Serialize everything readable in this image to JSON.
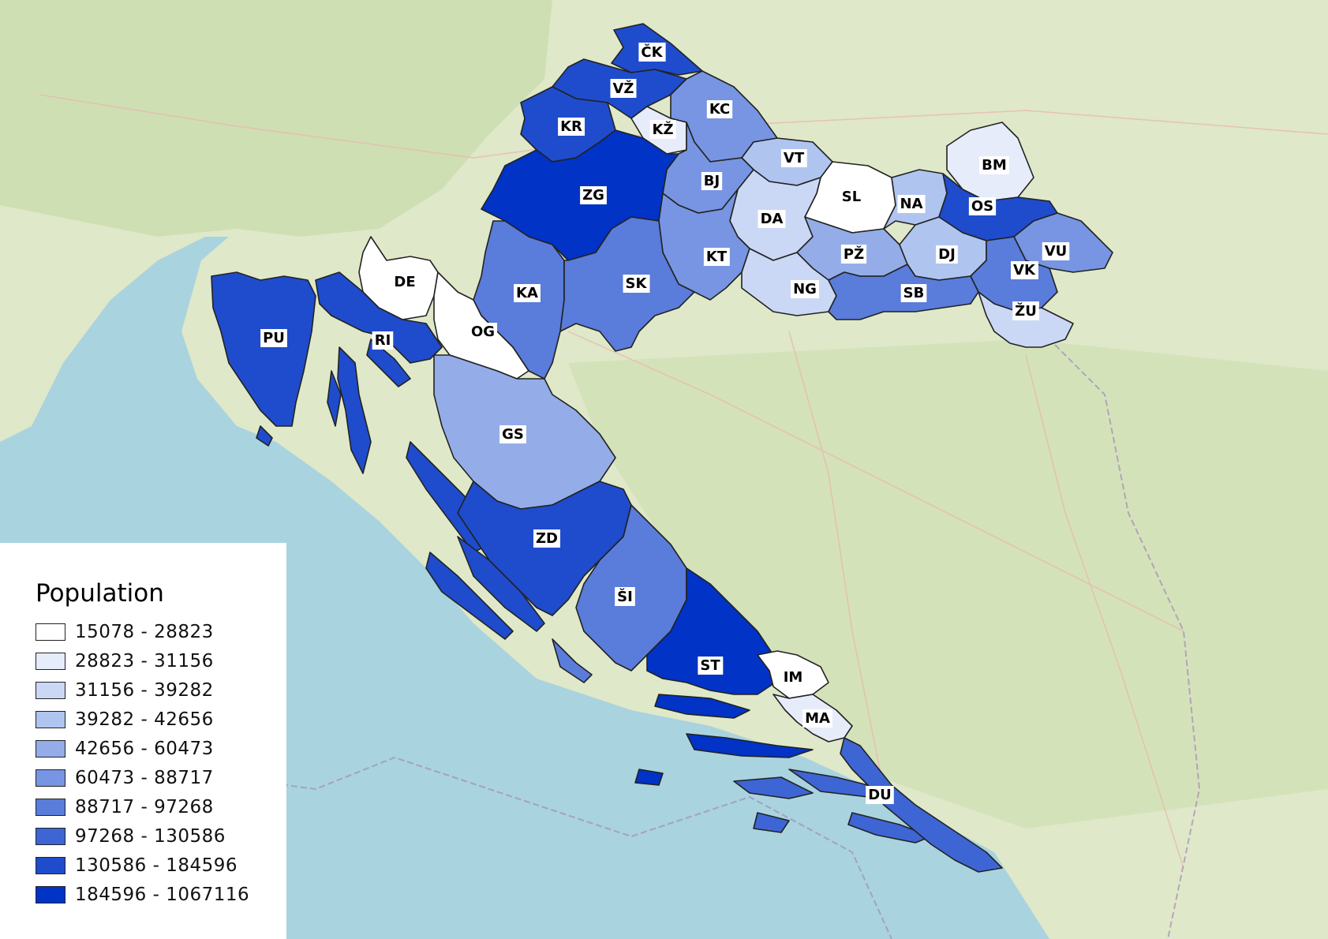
{
  "legend": {
    "title": "Population",
    "classes": [
      {
        "range": "15078 - 28823",
        "color": "#ffffff"
      },
      {
        "range": "28823 - 31156",
        "color": "#e6ecfa"
      },
      {
        "range": "31156 - 39282",
        "color": "#cbd8f5"
      },
      {
        "range": "39282 - 42656",
        "color": "#b0c4f0"
      },
      {
        "range": "42656 - 60473",
        "color": "#94ade9"
      },
      {
        "range": "60473 - 88717",
        "color": "#7795e2"
      },
      {
        "range": "88717 - 97268",
        "color": "#5a7cda"
      },
      {
        "range": "97268 - 130586",
        "color": "#3e65d4"
      },
      {
        "range": "130586 - 184596",
        "color": "#1f4ccd"
      },
      {
        "range": "184596 - 1067116",
        "color": "#0033c6"
      }
    ]
  },
  "counties": [
    {
      "code": "ČK",
      "class": 8
    },
    {
      "code": "VŽ",
      "class": 8
    },
    {
      "code": "KC",
      "class": 5
    },
    {
      "code": "KR",
      "class": 8
    },
    {
      "code": "KŽ",
      "class": 1
    },
    {
      "code": "VT",
      "class": 3
    },
    {
      "code": "BM",
      "class": 1
    },
    {
      "code": "BJ",
      "class": 5
    },
    {
      "code": "ZG",
      "class": 9
    },
    {
      "code": "SL",
      "class": 0
    },
    {
      "code": "NA",
      "class": 3
    },
    {
      "code": "OS",
      "class": 8
    },
    {
      "code": "DA",
      "class": 2
    },
    {
      "code": "KT",
      "class": 5
    },
    {
      "code": "PŽ",
      "class": 4
    },
    {
      "code": "DJ",
      "class": 3
    },
    {
      "code": "VU",
      "class": 5
    },
    {
      "code": "DE",
      "class": 0
    },
    {
      "code": "KA",
      "class": 6
    },
    {
      "code": "SK",
      "class": 6
    },
    {
      "code": "VK",
      "class": 6
    },
    {
      "code": "NG",
      "class": 2
    },
    {
      "code": "SB",
      "class": 6
    },
    {
      "code": "PU",
      "class": 8
    },
    {
      "code": "OG",
      "class": 0
    },
    {
      "code": "ŽU",
      "class": 2
    },
    {
      "code": "RI",
      "class": 8
    },
    {
      "code": "GS",
      "class": 4
    },
    {
      "code": "ZD",
      "class": 8
    },
    {
      "code": "ŠI",
      "class": 6
    },
    {
      "code": "ST",
      "class": 9
    },
    {
      "code": "IM",
      "class": 0
    },
    {
      "code": "MA",
      "class": 1
    },
    {
      "code": "DU",
      "class": 7
    }
  ]
}
